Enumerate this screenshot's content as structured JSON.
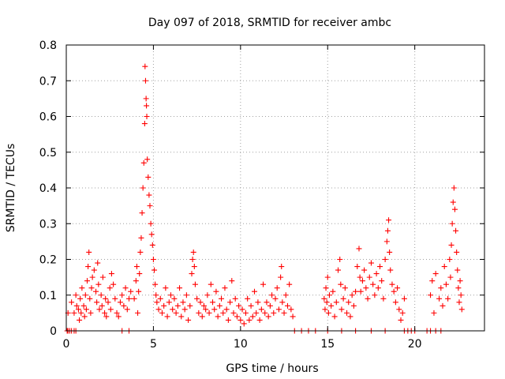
{
  "chart_data": {
    "type": "scatter",
    "title": "Day 097 of 2018, SRMTID for receiver ambc",
    "xlabel": "GPS time / hours",
    "ylabel": "SRMTID / TECUs",
    "xlim": [
      0,
      24
    ],
    "ylim": [
      0,
      0.8
    ],
    "x_ticks": [
      0,
      5,
      10,
      15,
      20
    ],
    "x_tick_labels": [
      "0",
      "5",
      "10",
      "15",
      "20"
    ],
    "y_ticks": [
      0,
      0.1,
      0.2,
      0.3,
      0.4,
      0.5,
      0.6,
      0.7,
      0.8
    ],
    "y_tick_labels": [
      "0",
      "0.1",
      "0.2",
      "0.3",
      "0.4",
      "0.5",
      "0.6",
      "0.7",
      "0.8"
    ],
    "grid": true,
    "marker": "+",
    "color": "#ff0000",
    "series": [
      {
        "name": "SRMTID",
        "points": [
          [
            0.05,
            0.0
          ],
          [
            0.1,
            0.0
          ],
          [
            0.2,
            0.0
          ],
          [
            0.3,
            0.0
          ],
          [
            0.45,
            0.0
          ],
          [
            0.55,
            0.0
          ],
          [
            0.1,
            0.05
          ],
          [
            0.3,
            0.08
          ],
          [
            0.45,
            0.05
          ],
          [
            0.55,
            0.1
          ],
          [
            0.6,
            0.07
          ],
          [
            0.7,
            0.06
          ],
          [
            0.75,
            0.03
          ],
          [
            0.8,
            0.09
          ],
          [
            0.85,
            0.05
          ],
          [
            0.9,
            0.12
          ],
          [
            1.0,
            0.07
          ],
          [
            1.05,
            0.04
          ],
          [
            1.1,
            0.1
          ],
          [
            1.15,
            0.06
          ],
          [
            1.2,
            0.14
          ],
          [
            1.25,
            0.18
          ],
          [
            1.3,
            0.22
          ],
          [
            1.35,
            0.09
          ],
          [
            1.4,
            0.05
          ],
          [
            1.45,
            0.12
          ],
          [
            1.5,
            0.15
          ],
          [
            1.6,
            0.17
          ],
          [
            1.7,
            0.11
          ],
          [
            1.75,
            0.08
          ],
          [
            1.8,
            0.19
          ],
          [
            1.85,
            0.13
          ],
          [
            1.9,
            0.06
          ],
          [
            2.0,
            0.1
          ],
          [
            2.05,
            0.07
          ],
          [
            2.1,
            0.15
          ],
          [
            2.2,
            0.05
          ],
          [
            2.25,
            0.09
          ],
          [
            2.3,
            0.04
          ],
          [
            2.4,
            0.08
          ],
          [
            2.5,
            0.12
          ],
          [
            2.55,
            0.06
          ],
          [
            2.6,
            0.16
          ],
          [
            2.7,
            0.13
          ],
          [
            2.8,
            0.09
          ],
          [
            2.9,
            0.05
          ],
          [
            3.0,
            0.04
          ],
          [
            3.1,
            0.08
          ],
          [
            3.2,
            0.1
          ],
          [
            3.3,
            0.07
          ],
          [
            3.4,
            0.12
          ],
          [
            3.5,
            0.06
          ],
          [
            3.6,
            0.09
          ],
          [
            3.7,
            0.11
          ],
          [
            3.2,
            0.0
          ],
          [
            3.6,
            0.0
          ],
          [
            3.9,
            0.09
          ],
          [
            4.0,
            0.14
          ],
          [
            4.05,
            0.18
          ],
          [
            4.1,
            0.05
          ],
          [
            4.15,
            0.11
          ],
          [
            4.2,
            0.16
          ],
          [
            4.25,
            0.22
          ],
          [
            4.3,
            0.26
          ],
          [
            4.35,
            0.33
          ],
          [
            4.4,
            0.4
          ],
          [
            4.45,
            0.47
          ],
          [
            4.5,
            0.58
          ],
          [
            4.52,
            0.74
          ],
          [
            4.55,
            0.7
          ],
          [
            4.58,
            0.65
          ],
          [
            4.6,
            0.63
          ],
          [
            4.62,
            0.6
          ],
          [
            4.65,
            0.48
          ],
          [
            4.7,
            0.43
          ],
          [
            4.75,
            0.38
          ],
          [
            4.8,
            0.35
          ],
          [
            4.85,
            0.3
          ],
          [
            4.9,
            0.27
          ],
          [
            4.95,
            0.24
          ],
          [
            5.0,
            0.2
          ],
          [
            5.05,
            0.17
          ],
          [
            5.1,
            0.13
          ],
          [
            5.15,
            0.1
          ],
          [
            5.2,
            0.08
          ],
          [
            5.3,
            0.06
          ],
          [
            5.4,
            0.09
          ],
          [
            5.5,
            0.05
          ],
          [
            5.6,
            0.07
          ],
          [
            5.7,
            0.12
          ],
          [
            5.8,
            0.04
          ],
          [
            5.9,
            0.08
          ],
          [
            6.0,
            0.1
          ],
          [
            6.1,
            0.06
          ],
          [
            6.2,
            0.09
          ],
          [
            6.3,
            0.05
          ],
          [
            6.4,
            0.07
          ],
          [
            6.5,
            0.12
          ],
          [
            6.6,
            0.04
          ],
          [
            6.7,
            0.08
          ],
          [
            6.8,
            0.06
          ],
          [
            6.9,
            0.1
          ],
          [
            7.0,
            0.03
          ],
          [
            7.1,
            0.07
          ],
          [
            7.2,
            0.16
          ],
          [
            7.25,
            0.2
          ],
          [
            7.3,
            0.22
          ],
          [
            7.35,
            0.18
          ],
          [
            7.4,
            0.13
          ],
          [
            7.5,
            0.09
          ],
          [
            7.6,
            0.05
          ],
          [
            7.7,
            0.08
          ],
          [
            7.8,
            0.04
          ],
          [
            7.9,
            0.07
          ],
          [
            8.0,
            0.06
          ],
          [
            8.1,
            0.1
          ],
          [
            8.2,
            0.05
          ],
          [
            8.3,
            0.13
          ],
          [
            8.4,
            0.08
          ],
          [
            8.5,
            0.06
          ],
          [
            8.6,
            0.11
          ],
          [
            8.7,
            0.04
          ],
          [
            8.8,
            0.07
          ],
          [
            8.9,
            0.09
          ],
          [
            9.0,
            0.05
          ],
          [
            9.1,
            0.12
          ],
          [
            9.2,
            0.06
          ],
          [
            9.3,
            0.03
          ],
          [
            9.4,
            0.08
          ],
          [
            9.5,
            0.14
          ],
          [
            9.6,
            0.05
          ],
          [
            9.7,
            0.09
          ],
          [
            9.8,
            0.04
          ],
          [
            9.9,
            0.07
          ],
          [
            10.0,
            0.03
          ],
          [
            10.1,
            0.06
          ],
          [
            10.2,
            0.02
          ],
          [
            10.3,
            0.05
          ],
          [
            10.4,
            0.09
          ],
          [
            10.5,
            0.03
          ],
          [
            10.6,
            0.07
          ],
          [
            10.7,
            0.04
          ],
          [
            10.8,
            0.11
          ],
          [
            10.9,
            0.05
          ],
          [
            11.0,
            0.08
          ],
          [
            11.1,
            0.03
          ],
          [
            11.2,
            0.06
          ],
          [
            11.3,
            0.13
          ],
          [
            11.4,
            0.05
          ],
          [
            11.5,
            0.08
          ],
          [
            11.6,
            0.04
          ],
          [
            11.7,
            0.07
          ],
          [
            11.8,
            0.1
          ],
          [
            11.9,
            0.05
          ],
          [
            12.0,
            0.09
          ],
          [
            12.1,
            0.12
          ],
          [
            12.2,
            0.06
          ],
          [
            12.3,
            0.15
          ],
          [
            12.35,
            0.18
          ],
          [
            12.4,
            0.08
          ],
          [
            12.5,
            0.05
          ],
          [
            12.6,
            0.1
          ],
          [
            12.7,
            0.07
          ],
          [
            12.8,
            0.13
          ],
          [
            12.9,
            0.06
          ],
          [
            13.0,
            0.04
          ],
          [
            13.1,
            0.0
          ],
          [
            13.5,
            0.0
          ],
          [
            13.9,
            0.0
          ],
          [
            14.3,
            0.0
          ],
          [
            14.8,
            0.09
          ],
          [
            14.85,
            0.06
          ],
          [
            14.9,
            0.12
          ],
          [
            14.95,
            0.08
          ],
          [
            15.0,
            0.15
          ],
          [
            15.05,
            0.05
          ],
          [
            15.1,
            0.1
          ],
          [
            15.2,
            0.07
          ],
          [
            15.3,
            0.11
          ],
          [
            15.4,
            0.04
          ],
          [
            15.5,
            0.08
          ],
          [
            15.6,
            0.17
          ],
          [
            15.7,
            0.2
          ],
          [
            15.75,
            0.13
          ],
          [
            15.8,
            0.06
          ],
          [
            15.9,
            0.09
          ],
          [
            16.0,
            0.12
          ],
          [
            16.1,
            0.05
          ],
          [
            16.2,
            0.08
          ],
          [
            16.3,
            0.04
          ],
          [
            16.4,
            0.1
          ],
          [
            16.5,
            0.07
          ],
          [
            16.6,
            0.11
          ],
          [
            16.7,
            0.18
          ],
          [
            16.8,
            0.23
          ],
          [
            16.85,
            0.15
          ],
          [
            16.9,
            0.11
          ],
          [
            17.0,
            0.14
          ],
          [
            17.1,
            0.17
          ],
          [
            17.2,
            0.12
          ],
          [
            17.3,
            0.09
          ],
          [
            17.4,
            0.15
          ],
          [
            17.5,
            0.19
          ],
          [
            17.6,
            0.13
          ],
          [
            17.7,
            0.1
          ],
          [
            17.8,
            0.16
          ],
          [
            17.9,
            0.12
          ],
          [
            18.0,
            0.18
          ],
          [
            18.1,
            0.14
          ],
          [
            18.2,
            0.09
          ],
          [
            18.3,
            0.2
          ],
          [
            18.4,
            0.25
          ],
          [
            18.45,
            0.28
          ],
          [
            18.5,
            0.31
          ],
          [
            18.55,
            0.22
          ],
          [
            18.6,
            0.17
          ],
          [
            18.7,
            0.13
          ],
          [
            18.8,
            0.11
          ],
          [
            18.9,
            0.08
          ],
          [
            19.0,
            0.12
          ],
          [
            19.1,
            0.06
          ],
          [
            19.2,
            0.03
          ],
          [
            19.3,
            0.05
          ],
          [
            19.4,
            0.09
          ],
          [
            15.0,
            0.0
          ],
          [
            15.8,
            0.0
          ],
          [
            16.6,
            0.0
          ],
          [
            17.5,
            0.0
          ],
          [
            18.3,
            0.0
          ],
          [
            19.4,
            0.0
          ],
          [
            19.6,
            0.0
          ],
          [
            19.8,
            0.0
          ],
          [
            20.0,
            0.0
          ],
          [
            20.7,
            0.0
          ],
          [
            20.9,
            0.0
          ],
          [
            21.2,
            0.0
          ],
          [
            21.5,
            0.0
          ],
          [
            20.9,
            0.1
          ],
          [
            21.0,
            0.14
          ],
          [
            21.1,
            0.05
          ],
          [
            21.2,
            0.16
          ],
          [
            21.4,
            0.09
          ],
          [
            21.5,
            0.12
          ],
          [
            21.6,
            0.07
          ],
          [
            21.7,
            0.18
          ],
          [
            21.8,
            0.13
          ],
          [
            21.9,
            0.09
          ],
          [
            22.0,
            0.2
          ],
          [
            22.05,
            0.15
          ],
          [
            22.1,
            0.24
          ],
          [
            22.15,
            0.3
          ],
          [
            22.2,
            0.36
          ],
          [
            22.25,
            0.4
          ],
          [
            22.3,
            0.34
          ],
          [
            22.35,
            0.28
          ],
          [
            22.4,
            0.22
          ],
          [
            22.45,
            0.17
          ],
          [
            22.5,
            0.12
          ],
          [
            22.55,
            0.08
          ],
          [
            22.6,
            0.14
          ],
          [
            22.65,
            0.1
          ],
          [
            22.7,
            0.06
          ]
        ]
      }
    ]
  }
}
